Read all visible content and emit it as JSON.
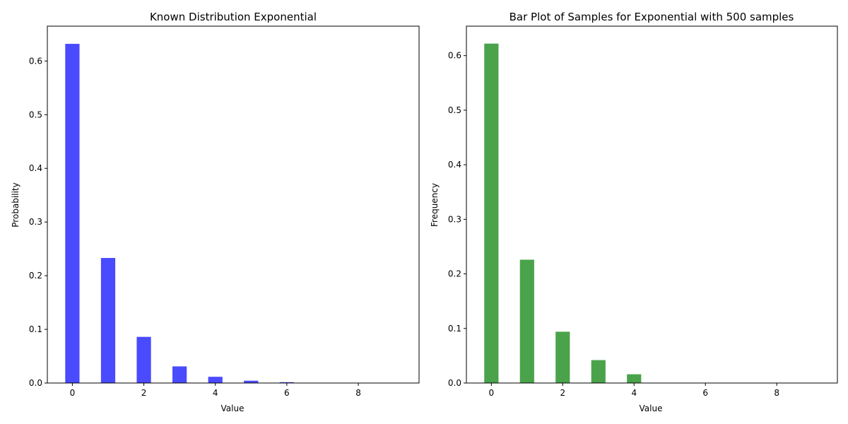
{
  "chart_data": [
    {
      "type": "bar",
      "title": "Known Distribution Exponential",
      "xlabel": "Value",
      "ylabel": "Probability",
      "x": [
        0,
        1,
        2,
        3,
        4,
        5,
        6,
        7,
        8,
        9
      ],
      "values": [
        0.632,
        0.233,
        0.086,
        0.031,
        0.0116,
        0.0043,
        0.0016,
        0.0006,
        0.0002,
        0.0001
      ],
      "color": "#4a4aff",
      "xlim": [
        -0.7,
        9.7
      ],
      "ylim": [
        0,
        0.665
      ],
      "xticks": [
        0,
        2,
        4,
        6,
        8
      ],
      "xtick_labels": [
        "0",
        "2",
        "4",
        "6",
        "8"
      ],
      "yticks": [
        0,
        0.1,
        0.2,
        0.3,
        0.4,
        0.5,
        0.6
      ],
      "ytick_labels": [
        "0.0",
        "0.1",
        "0.2",
        "0.3",
        "0.4",
        "0.5",
        "0.6"
      ],
      "grid": false,
      "legend": "none"
    },
    {
      "type": "bar",
      "title": "Bar Plot of Samples for Exponential with 500 samples",
      "xlabel": "Value",
      "ylabel": "Frequency",
      "x": [
        0,
        1,
        2,
        3,
        4,
        5,
        6,
        7,
        8,
        9
      ],
      "values": [
        0.622,
        0.226,
        0.094,
        0.042,
        0.016,
        0,
        0,
        0,
        0,
        0
      ],
      "color": "#4aa34a",
      "xlim": [
        -0.7,
        9.7
      ],
      "ylim": [
        0,
        0.654
      ],
      "xticks": [
        0,
        2,
        4,
        6,
        8
      ],
      "xtick_labels": [
        "0",
        "2",
        "4",
        "6",
        "8"
      ],
      "yticks": [
        0,
        0.1,
        0.2,
        0.3,
        0.4,
        0.5,
        0.6
      ],
      "ytick_labels": [
        "0.0",
        "0.1",
        "0.2",
        "0.3",
        "0.4",
        "0.5",
        "0.6"
      ],
      "grid": false,
      "legend": "none"
    }
  ]
}
